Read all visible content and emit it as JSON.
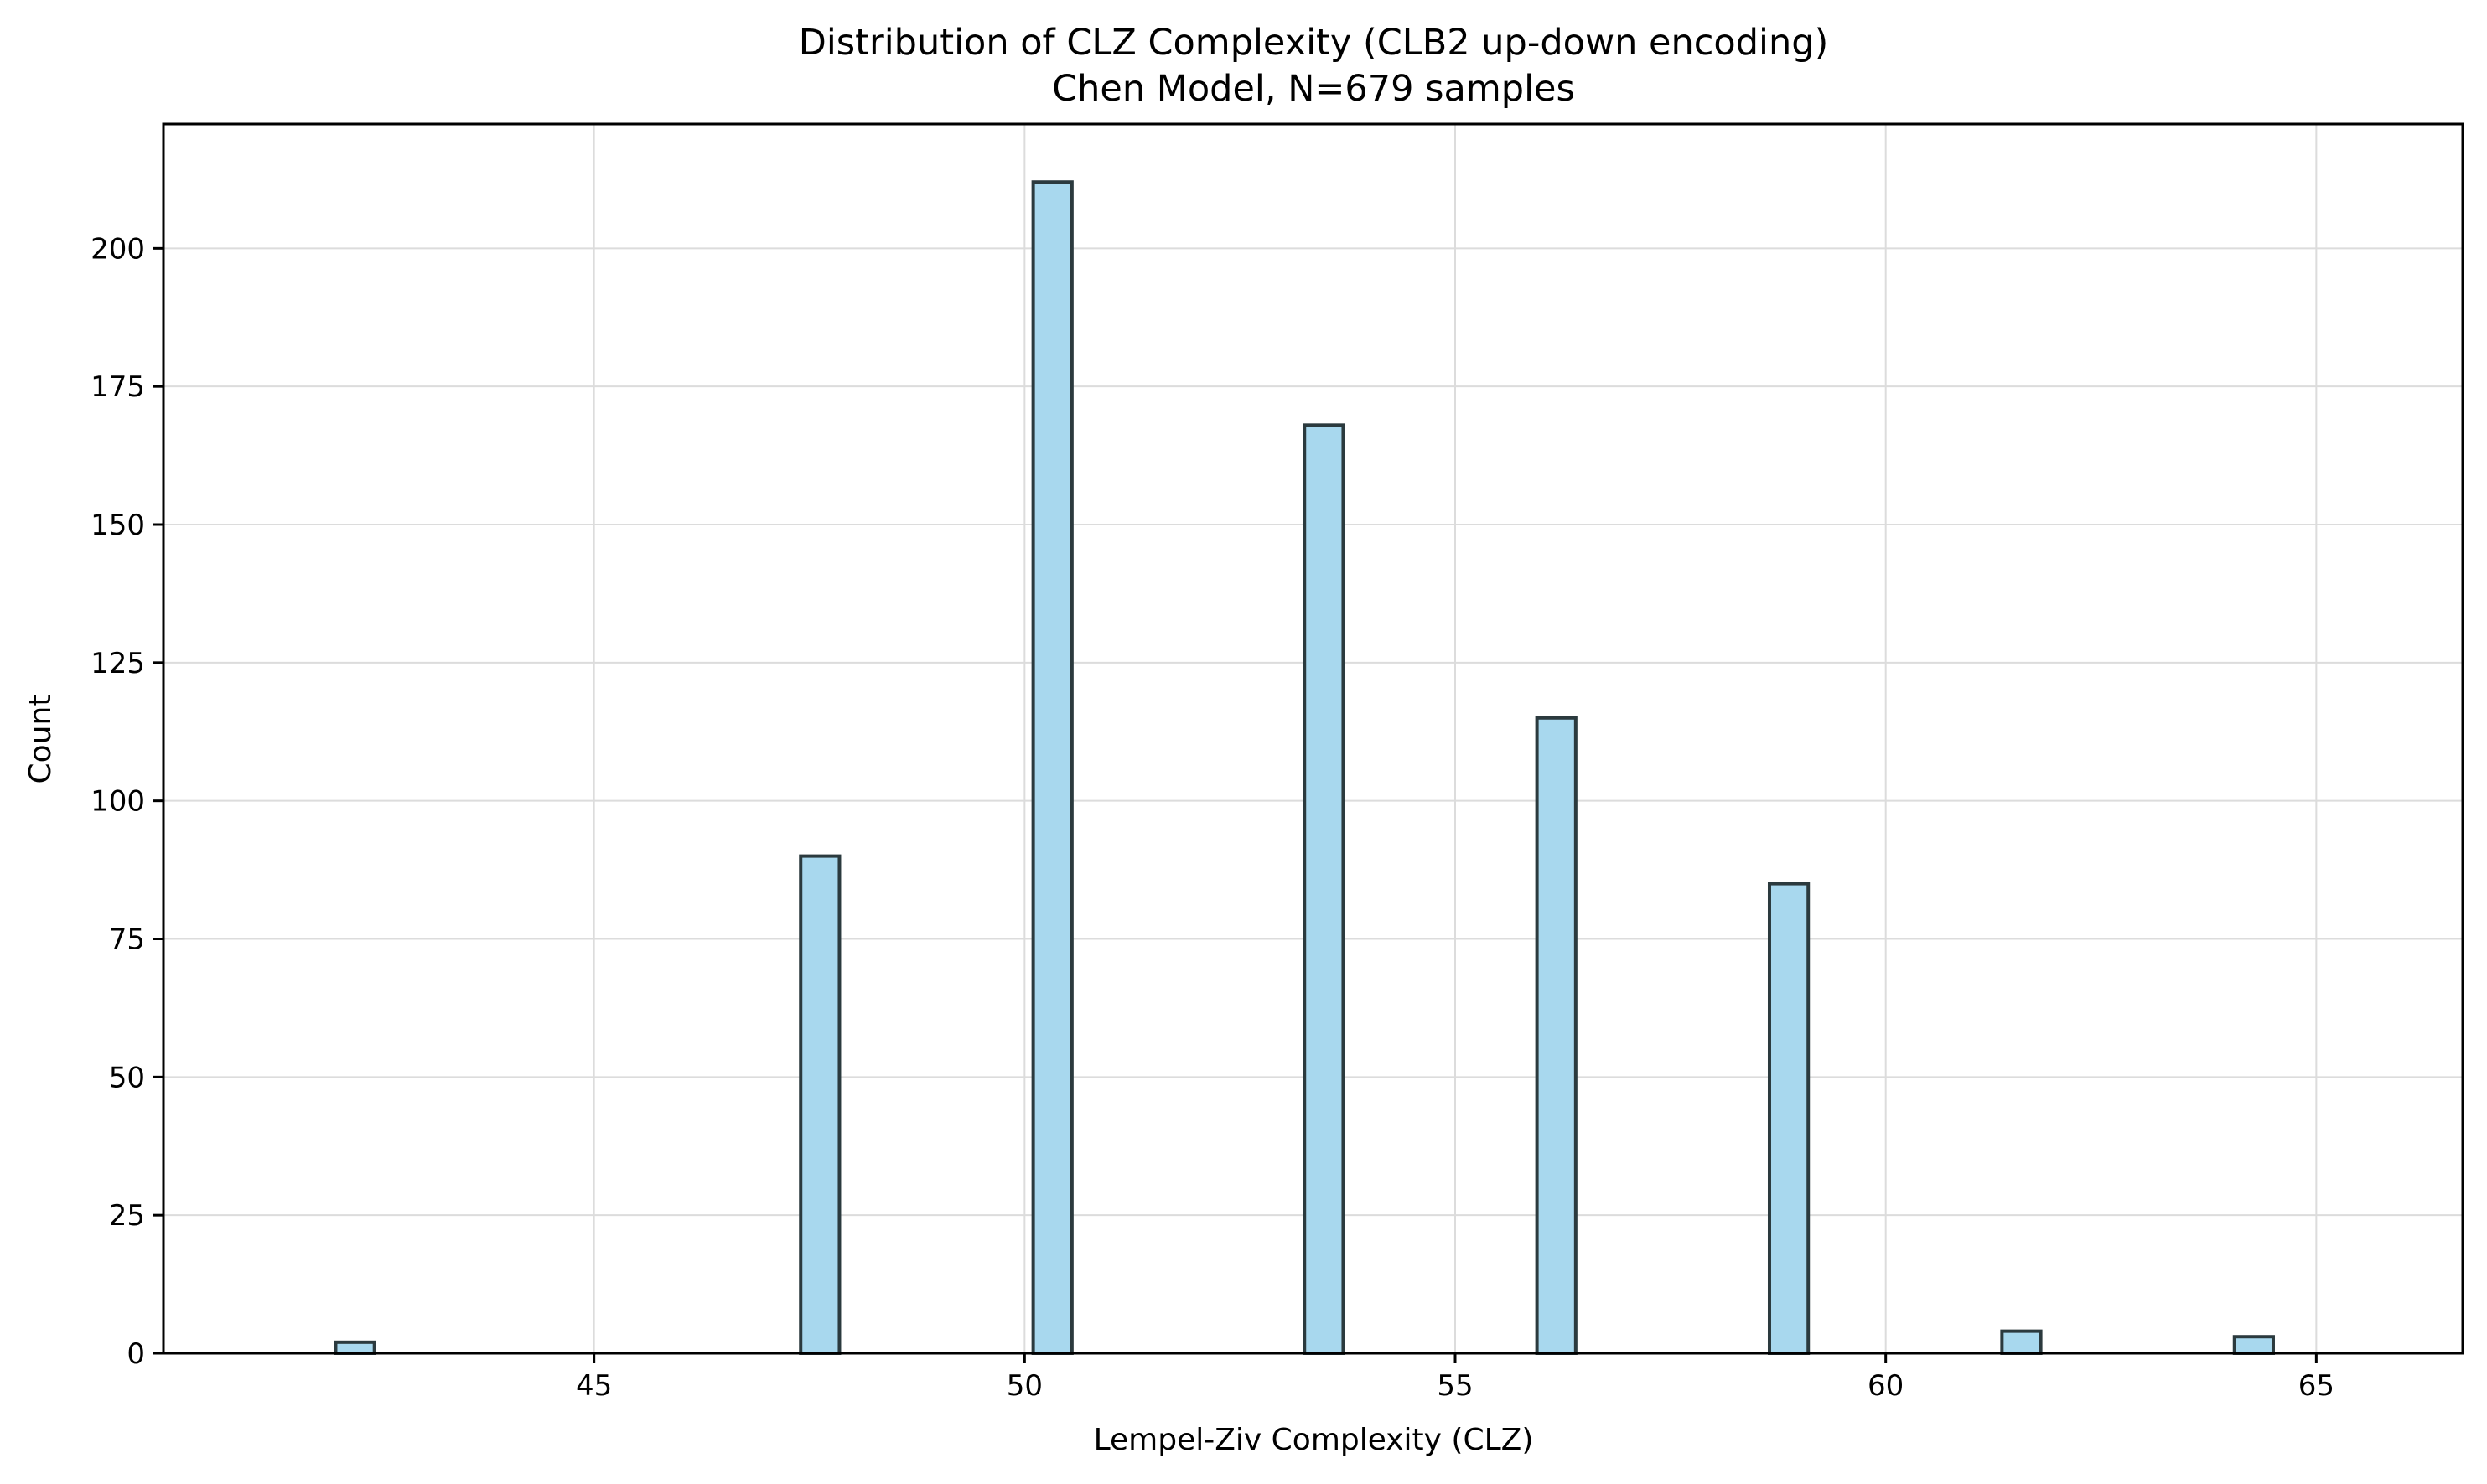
{
  "chart_data": {
    "type": "bar",
    "title": "Distribution of CLZ Complexity (CLB2 up-down encoding)",
    "subtitle": "Chen Model, N=679 samples",
    "xlabel": "Lempel-Ziv Complexity (CLZ)",
    "ylabel": "Count",
    "xlim": [
      40,
      66.7
    ],
    "ylim": [
      0,
      222.5
    ],
    "xticks": [
      45,
      50,
      55,
      60,
      65
    ],
    "yticks": [
      0,
      25,
      50,
      75,
      100,
      125,
      150,
      175,
      200
    ],
    "bin_width": 0.45,
    "grid": true,
    "bars": [
      {
        "x": 42.0,
        "value": 2
      },
      {
        "x": 47.4,
        "value": 90
      },
      {
        "x": 50.1,
        "value": 212
      },
      {
        "x": 53.25,
        "value": 168
      },
      {
        "x": 55.95,
        "value": 115
      },
      {
        "x": 58.65,
        "value": 85
      },
      {
        "x": 61.35,
        "value": 4
      },
      {
        "x": 64.05,
        "value": 3
      }
    ]
  }
}
